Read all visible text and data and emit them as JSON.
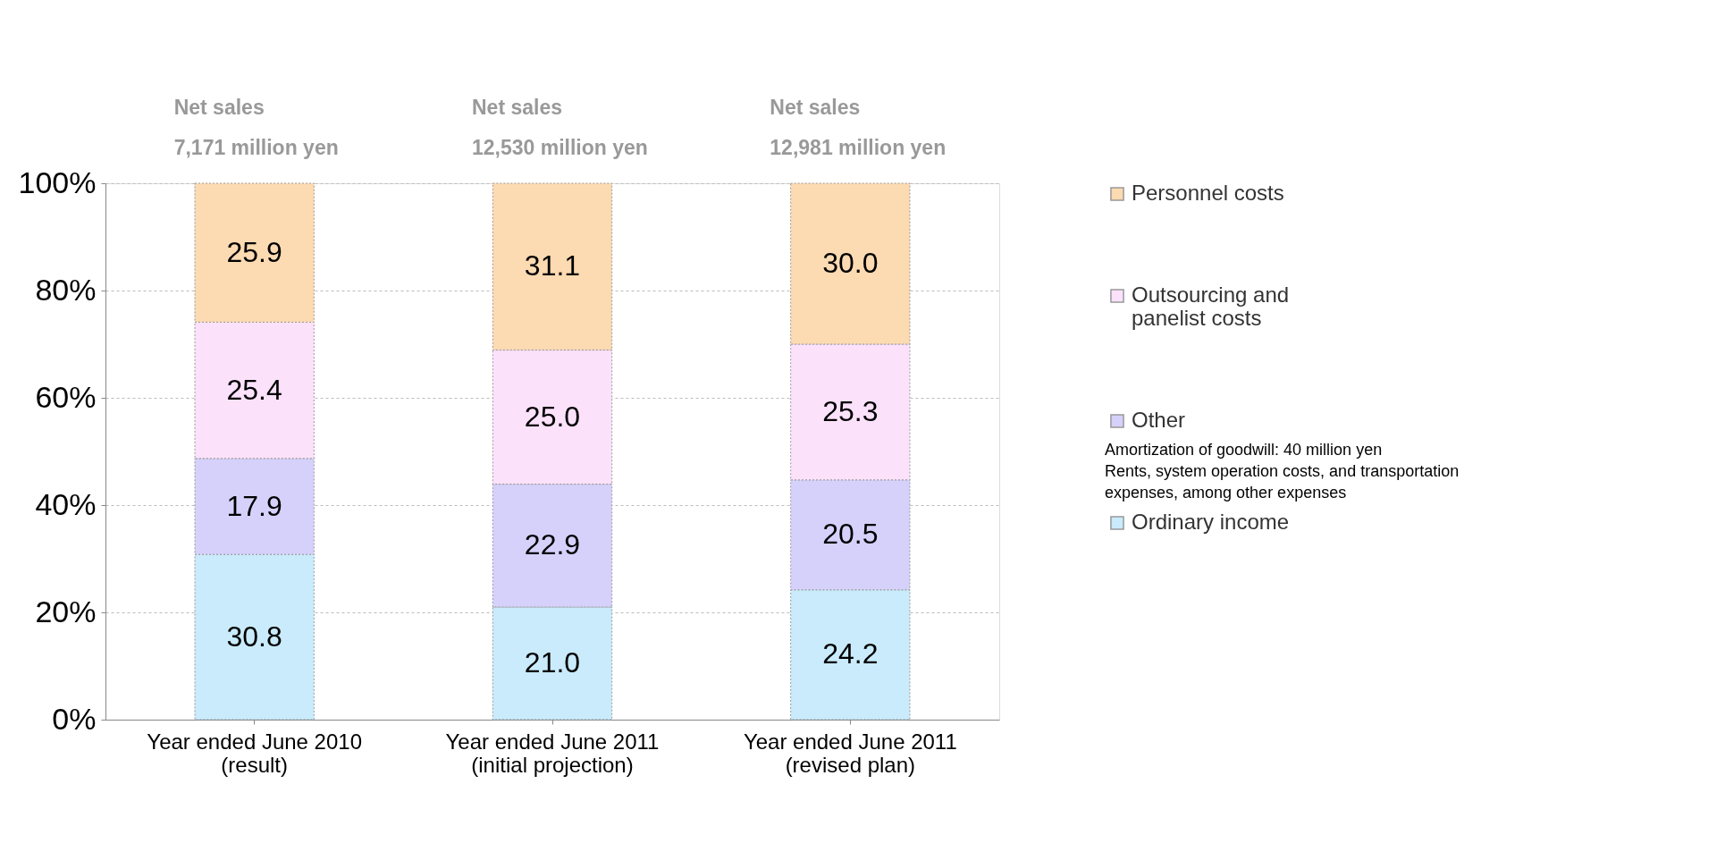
{
  "chart_data": {
    "type": "bar",
    "stacked": true,
    "categories": [
      "Year ended June 2010\n(result)",
      "Year ended June 2011\n(initial projection)",
      "Year ended June 2011\n(revised plan)"
    ],
    "series": [
      {
        "name": "Ordinary income",
        "color": "#c9ebfb",
        "values": [
          30.8,
          21.0,
          24.2
        ],
        "value_labels": [
          "30.8",
          "21.0",
          "24.2"
        ]
      },
      {
        "name": "Other",
        "color": "#d5d1fb",
        "values": [
          17.9,
          22.9,
          20.5
        ],
        "value_labels": [
          "17.9",
          "22.9",
          "20.5"
        ]
      },
      {
        "name": "Outsourcing and\npanelist costs",
        "color": "#fce1fb",
        "values": [
          25.4,
          25.0,
          25.3
        ],
        "value_labels": [
          "25.4",
          "25.0",
          "25.3"
        ]
      },
      {
        "name": "Personnel costs",
        "color": "#fcdab2",
        "values": [
          25.9,
          31.1,
          30.0
        ],
        "value_labels": [
          "25.9",
          "31.1",
          "30.0"
        ]
      }
    ],
    "ylim": [
      0,
      100
    ],
    "yticks": [
      {
        "value": 0,
        "label": "0%"
      },
      {
        "value": 20,
        "label": "20%"
      },
      {
        "value": 40,
        "label": "40%"
      },
      {
        "value": 60,
        "label": "60%"
      },
      {
        "value": 80,
        "label": "80%"
      },
      {
        "value": 100,
        "label": "100%"
      }
    ],
    "grid": "y",
    "legend": "right",
    "annotations": [
      "Net sales",
      "7,171 million yen",
      "Net sales",
      "12,530 million yen",
      "Net sales",
      "12,981 million yen",
      "Amortization of goodwill: 40 million yen\nRents, system operation costs, and transportation\nexpenses, among other expenses"
    ]
  }
}
